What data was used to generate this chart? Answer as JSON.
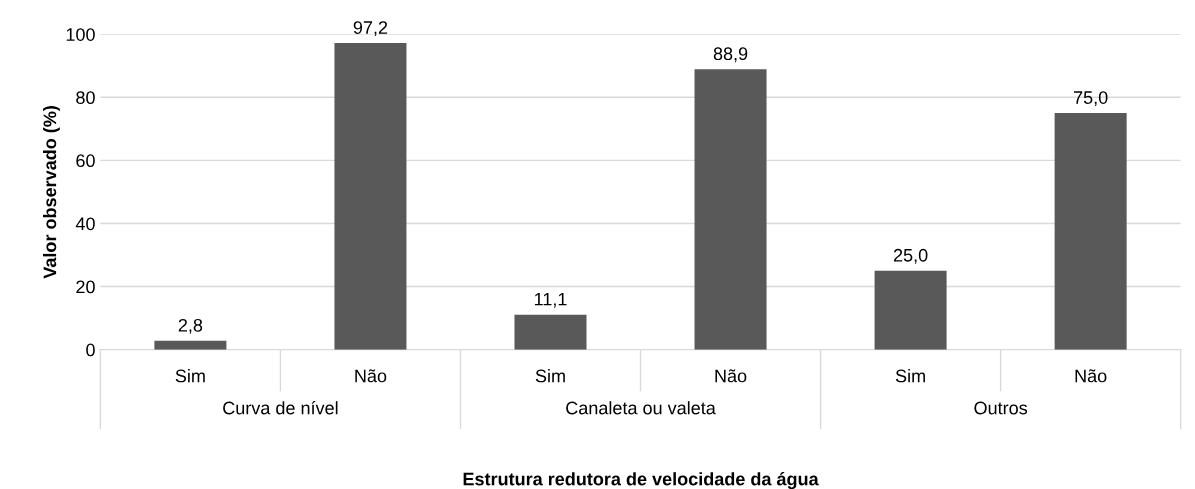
{
  "chart_data": {
    "type": "bar",
    "xlabel": "Estrutura redutora de velocidade da água",
    "ylabel": "Valor observado (%)",
    "categories": [
      "Sim",
      "Não",
      "Sim",
      "Não",
      "Sim",
      "Não"
    ],
    "values": [
      2.8,
      97.2,
      11.1,
      88.9,
      25.0,
      75.0
    ],
    "value_labels": [
      "2,8",
      "97,2",
      "11,1",
      "88,9",
      "25,0",
      "75,0"
    ],
    "color": "#595959",
    "ylim": [
      0,
      100
    ],
    "yticks": [
      0,
      20,
      40,
      60,
      80,
      100
    ],
    "grid": "y",
    "annotations": [
      "Curva de nível",
      "Canaleta ou valeta",
      "Outros"
    ]
  }
}
